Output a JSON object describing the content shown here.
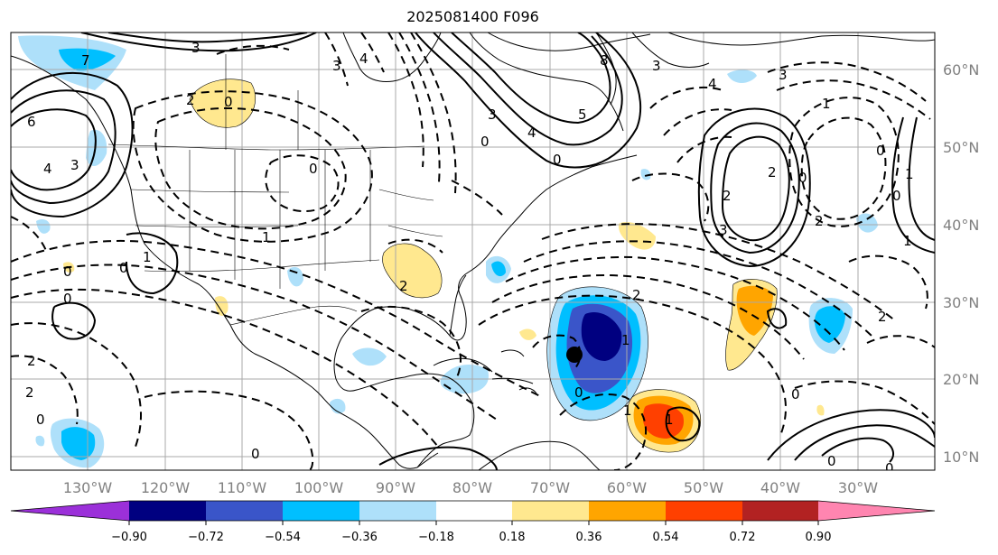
{
  "title": "2025081400 F096",
  "map": {
    "longitude_labels": [
      "130°W",
      "120°W",
      "110°W",
      "100°W",
      "90°W",
      "80°W",
      "70°W",
      "60°W",
      "50°W",
      "40°W",
      "30°W"
    ],
    "latitude_labels": [
      "60°N",
      "50°N",
      "40°N",
      "30°N",
      "20°N",
      "10°N"
    ],
    "grid": true
  },
  "colorbar": {
    "tick_labels": [
      "−0.90",
      "−0.72",
      "−0.54",
      "−0.36",
      "−0.18",
      "0.18",
      "0.36",
      "0.54",
      "0.72",
      "0.90"
    ],
    "colors": [
      "#9b30d9",
      "#000080",
      "#3a55c9",
      "#00bfff",
      "#aee0fa",
      "#ffffff",
      "#ffe88f",
      "#ffa500",
      "#ff4000",
      "#b22222",
      "#ff85b0"
    ],
    "extend": "both"
  },
  "marker": {
    "label": "storm-center-dot"
  },
  "contour_labels": [
    "3",
    "7",
    "6",
    "4",
    "3",
    "0",
    "2",
    "3",
    "4",
    "0",
    "3",
    "0",
    "8",
    "5",
    "4",
    "0",
    "3",
    "4",
    "3",
    "2",
    "1",
    "0",
    "2",
    "3",
    "2",
    "0",
    "1",
    "0",
    "1",
    "1",
    "0",
    "1",
    "0",
    "0",
    "2",
    "2",
    "0",
    "0",
    "2",
    "2",
    "1",
    "0",
    "1",
    "1",
    "0",
    "2",
    "0",
    "0"
  ]
}
